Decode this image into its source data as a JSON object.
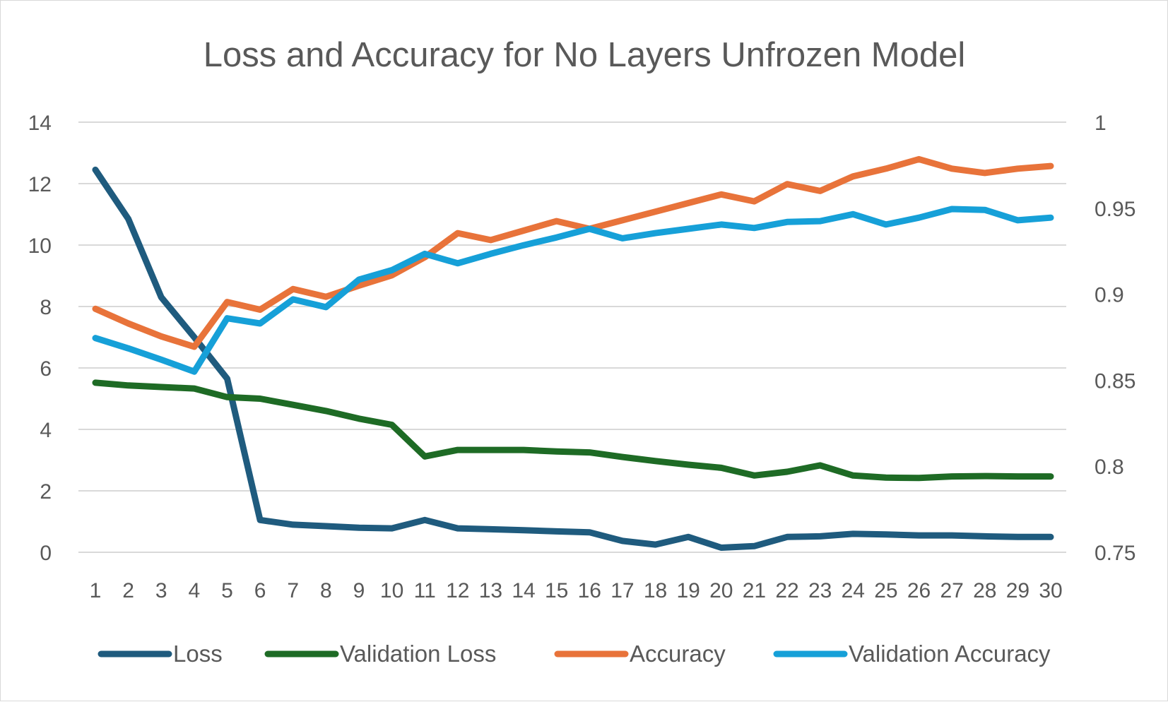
{
  "chart_data": {
    "type": "line",
    "title": "Loss and Accuracy for No Layers Unfrozen Model",
    "x": [
      1,
      2,
      3,
      4,
      5,
      6,
      7,
      8,
      9,
      10,
      11,
      12,
      13,
      14,
      15,
      16,
      17,
      18,
      19,
      20,
      21,
      22,
      23,
      24,
      25,
      26,
      27,
      28,
      29,
      30
    ],
    "y_left": {
      "ylim": [
        0,
        14
      ],
      "ticks": [
        "0",
        "2",
        "4",
        "6",
        "8",
        "10",
        "12",
        "14"
      ]
    },
    "y_right": {
      "ylim": [
        0.75,
        1
      ],
      "ticks": [
        "0.75",
        "0.8",
        "0.85",
        "0.9",
        "0.95",
        "1"
      ]
    },
    "grid": true,
    "legend_position": "bottom",
    "series": [
      {
        "name": "Loss",
        "axis": "left",
        "color": "#1f5b7e",
        "values": [
          12.45,
          10.85,
          8.3,
          7.0,
          5.65,
          1.05,
          0.9,
          0.85,
          0.8,
          0.78,
          1.05,
          0.78,
          0.75,
          0.72,
          0.68,
          0.65,
          0.37,
          0.25,
          0.5,
          0.15,
          0.2,
          0.5,
          0.52,
          0.6,
          0.58,
          0.55,
          0.55,
          0.52,
          0.5,
          0.5
        ]
      },
      {
        "name": "Validation Loss",
        "axis": "left",
        "color": "#1e6b25",
        "values": [
          5.52,
          5.43,
          5.38,
          5.33,
          5.05,
          5.0,
          4.8,
          4.6,
          4.35,
          4.15,
          3.12,
          3.33,
          3.33,
          3.33,
          3.28,
          3.25,
          3.1,
          2.97,
          2.85,
          2.75,
          2.5,
          2.62,
          2.83,
          2.5,
          2.43,
          2.42,
          2.47,
          2.48,
          2.47,
          2.47
        ]
      },
      {
        "name": "Accuracy",
        "axis": "right",
        "color": "#e8733a",
        "values": [
          0.8915,
          0.883,
          0.8755,
          0.8695,
          0.8955,
          0.891,
          0.903,
          0.8985,
          0.905,
          0.911,
          0.9215,
          0.9355,
          0.9315,
          0.937,
          0.9425,
          0.938,
          0.943,
          0.948,
          0.953,
          0.958,
          0.954,
          0.964,
          0.96,
          0.9685,
          0.973,
          0.9785,
          0.973,
          0.9705,
          0.973,
          0.9745
        ]
      },
      {
        "name": "Validation Accuracy",
        "axis": "right",
        "color": "#16a0d8",
        "values": [
          0.8745,
          0.8685,
          0.862,
          0.855,
          0.886,
          0.883,
          0.897,
          0.8925,
          0.9085,
          0.914,
          0.9235,
          0.918,
          0.9235,
          0.9285,
          0.933,
          0.938,
          0.9325,
          0.9355,
          0.938,
          0.9405,
          0.9385,
          0.942,
          0.9425,
          0.9465,
          0.9405,
          0.9445,
          0.9495,
          0.949,
          0.943,
          0.9445
        ]
      }
    ]
  }
}
